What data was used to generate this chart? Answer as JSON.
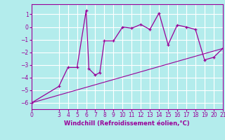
{
  "xlabel": "Windchill (Refroidissement éolien,°C)",
  "xlim": [
    0,
    21
  ],
  "ylim": [
    -6.5,
    1.8
  ],
  "yticks": [
    1,
    0,
    -1,
    -2,
    -3,
    -4,
    -5,
    -6
  ],
  "xticks": [
    0,
    3,
    4,
    5,
    6,
    7,
    8,
    9,
    10,
    11,
    12,
    13,
    14,
    15,
    16,
    17,
    18,
    19,
    20,
    21
  ],
  "bg_color": "#b3ecec",
  "grid_color": "#ffffff",
  "line_color": "#990099",
  "curve_x": [
    0,
    3,
    4,
    5,
    6,
    6.3,
    7,
    7.5,
    8,
    9,
    10,
    11,
    12,
    13,
    14,
    15,
    16,
    17,
    18,
    19,
    20,
    21
  ],
  "curve_y": [
    -6.0,
    -4.7,
    -3.2,
    -3.2,
    1.3,
    -3.3,
    -3.8,
    -3.6,
    -1.1,
    -1.1,
    0.0,
    -0.1,
    0.2,
    -0.2,
    1.1,
    -1.4,
    0.15,
    0.0,
    -0.2,
    -2.6,
    -2.4,
    -1.7
  ],
  "trend_x": [
    0,
    21
  ],
  "trend_y": [
    -6.0,
    -1.7
  ]
}
